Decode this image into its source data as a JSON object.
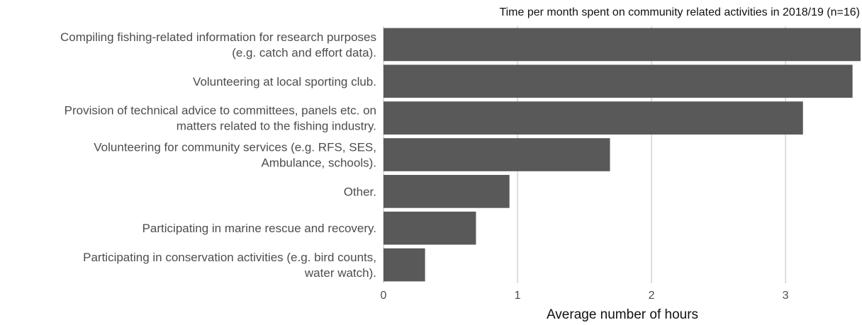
{
  "chart_data": {
    "type": "bar",
    "orientation": "horizontal",
    "title": "Time per month spent on community related activities in 2018/19 (n=16)",
    "xlabel": "Average number of hours",
    "ylabel": "",
    "categories": [
      [
        "Compiling fishing-related information for research purposes",
        "(e.g. catch and effort data)."
      ],
      [
        "Volunteering at local sporting club."
      ],
      [
        "Provision of technical advice to committees, panels etc. on",
        "matters related to the fishing industry."
      ],
      [
        "Volunteering for community services (e.g. RFS, SES,",
        "Ambulance, schools)."
      ],
      [
        "Other."
      ],
      [
        "Participating in marine rescue and recovery."
      ],
      [
        "Participating in conservation activities (e.g. bird counts,",
        "water watch)."
      ]
    ],
    "values": [
      3.56,
      3.5,
      3.13,
      1.69,
      0.94,
      0.69,
      0.31
    ],
    "xlim": [
      0,
      3.56
    ],
    "xticks": [
      0,
      1,
      2,
      3
    ],
    "xtick_labels": [
      "0",
      "1",
      "2",
      "3"
    ],
    "grid": true,
    "bar_color": "#595959"
  }
}
